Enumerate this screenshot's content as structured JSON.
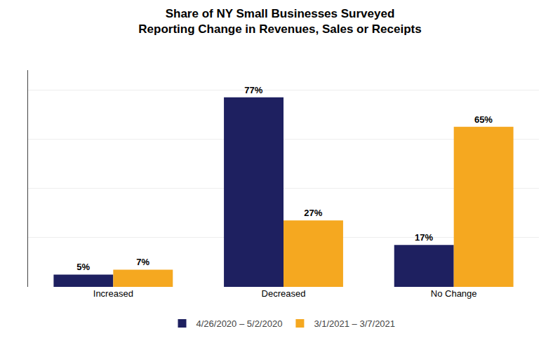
{
  "chart_data": {
    "type": "bar",
    "title": "Share of NY Small Businesses Surveyed\nReporting Change in Revenues, Sales or Receipts",
    "categories": [
      "Increased",
      "Decreased",
      "No Change"
    ],
    "series": [
      {
        "name": "4/26/2020 – 5/2/2020",
        "color": "#1e2060",
        "values": [
          5,
          77,
          17
        ],
        "value_labels": [
          "5%",
          "77%",
          "17%"
        ]
      },
      {
        "name": "3/1/2021 – 3/7/2021",
        "color": "#f5a820",
        "values": [
          7,
          27,
          65
        ],
        "value_labels": [
          "7%",
          "27%",
          "65%"
        ]
      }
    ],
    "ylim": [
      0,
      88
    ],
    "yticks": [
      0,
      20,
      40,
      60,
      80
    ],
    "grid": true,
    "legend": "bottom",
    "data_labels": true,
    "tick_labels": "x"
  }
}
